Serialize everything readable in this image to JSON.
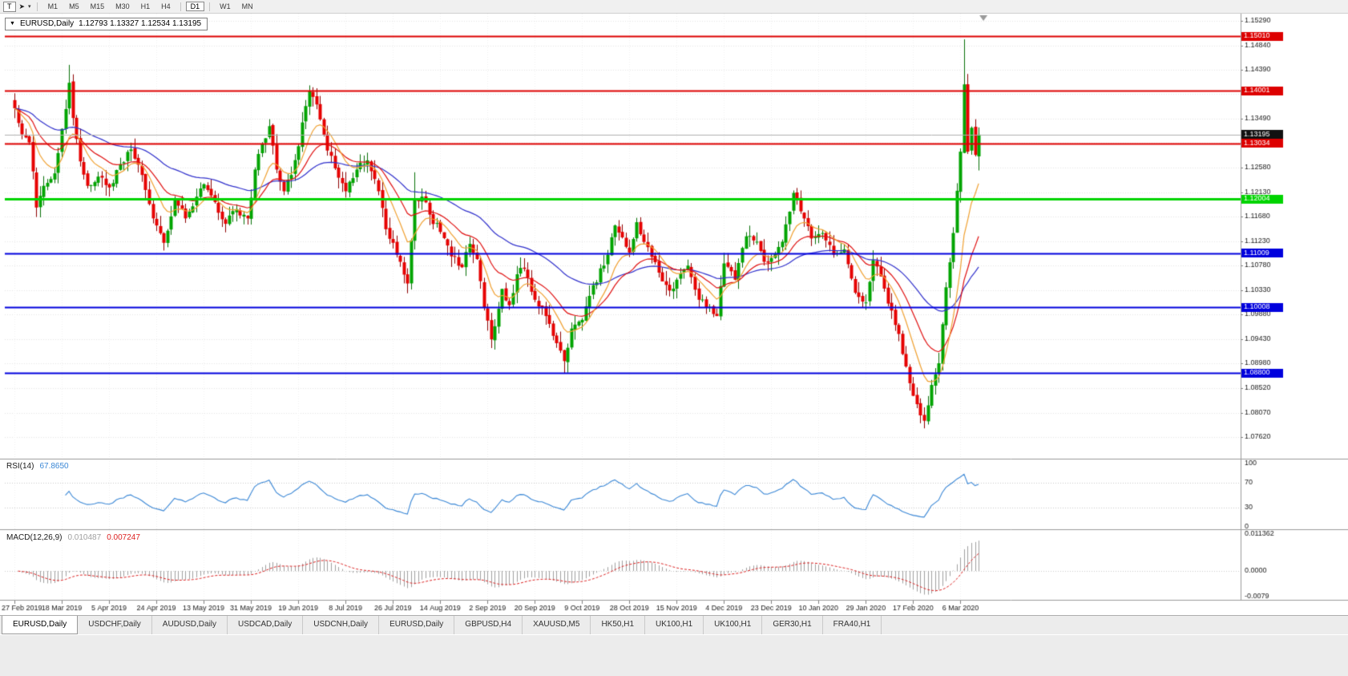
{
  "toolbar": {
    "tool_button_label": "T",
    "timeframes": [
      "M1",
      "M5",
      "M15",
      "M30",
      "H1",
      "H4",
      "D1",
      "W1",
      "MN"
    ],
    "active_timeframe": "D1"
  },
  "chart": {
    "symbol_period": "EURUSD,Daily",
    "ohlc_text": "1.12793 1.13327 1.12534 1.13195",
    "current_price": "1.13195",
    "price_axis_labels": [
      "1.15290",
      "1.14840",
      "1.14390",
      "1.13940",
      "1.13490",
      "1.13040",
      "1.12580",
      "1.12130",
      "1.11680",
      "1.11230",
      "1.10780",
      "1.10330",
      "1.09880",
      "1.09430",
      "1.08980",
      "1.08520",
      "1.08070",
      "1.07620"
    ],
    "hlines": [
      {
        "value": 1.1501,
        "label": "1.15010",
        "color": "#dd0000",
        "width": 2
      },
      {
        "value": 1.14001,
        "label": "1.14001",
        "color": "#dd0000",
        "width": 2
      },
      {
        "value": 1.13034,
        "label": "1.13034",
        "color": "#dd0000",
        "width": 2
      },
      {
        "value": 1.12004,
        "label": "1.12004",
        "color": "#00d400",
        "width": 3
      },
      {
        "value": 1.11009,
        "label": "1.11009",
        "color": "#0000dd",
        "width": 2
      },
      {
        "value": 1.10008,
        "label": "1.10008",
        "color": "#0000dd",
        "width": 2
      },
      {
        "value": 1.088,
        "label": "1.08800",
        "color": "#0000dd",
        "width": 2
      }
    ]
  },
  "rsi": {
    "name": "RSI(14)",
    "value": "67.8650",
    "period": 14,
    "line_color": "#3a87d6",
    "levels": [
      {
        "label": "100",
        "value": 100
      },
      {
        "label": "70",
        "value": 70
      },
      {
        "label": "30",
        "value": 30
      },
      {
        "label": "0",
        "value": 0
      }
    ]
  },
  "macd": {
    "name": "MACD(12,26,9)",
    "macd_value": "0.010487",
    "signal_value": "0.007247",
    "fast": 12,
    "slow": 26,
    "signal": 9,
    "histogram_color": "#a0a0a0",
    "signal_color": "#dd2222",
    "axis_labels": [
      {
        "label": "0.011362",
        "value": 0.011362
      },
      {
        "label": "0.0000",
        "value": 0.0
      },
      {
        "label": "-0.0079",
        "value": -0.0079
      }
    ]
  },
  "date_axis": [
    "27 Feb 2019",
    "18 Mar 2019",
    "5 Apr 2019",
    "24 Apr 2019",
    "13 May 2019",
    "31 May 2019",
    "19 Jun 2019",
    "8 Jul 2019",
    "26 Jul 2019",
    "14 Aug 2019",
    "2 Sep 2019",
    "20 Sep 2019",
    "9 Oct 2019",
    "28 Oct 2019",
    "15 Nov 2019",
    "4 Dec 2019",
    "23 Dec 2019",
    "10 Jan 2020",
    "29 Jan 2020",
    "17 Feb 2020",
    "6 Mar 2020"
  ],
  "tabs": {
    "active_index": 0,
    "items": [
      "EURUSD,Daily",
      "USDCHF,Daily",
      "AUDUSD,Daily",
      "USDCAD,Daily",
      "USDCNH,Daily",
      "EURUSD,Daily",
      "GBPUSD,H4",
      "XAUUSD,M5",
      "HK50,H1",
      "UK100,H1",
      "UK100,H1",
      "GER30,H1",
      "FRA40,H1"
    ]
  },
  "chart_data": {
    "type": "candlestick",
    "symbol": "EURUSD",
    "timeframe": "Daily",
    "bar_count": 266,
    "bars_per_label": 13,
    "price_range_top": 1.15424,
    "price_range_bottom": 1.07221,
    "noise": 0.0014,
    "wick": 0.002,
    "bull_color": "#00a400",
    "bull_wick": "#067006",
    "bear_color": "#e60000",
    "bear_wick": "#8e0000",
    "moving_averages": [
      {
        "period": 52,
        "color": "#3030cc"
      },
      {
        "period": 21,
        "color": "#e01010"
      },
      {
        "period": 10,
        "color": "#f0a030"
      }
    ],
    "last_bar": {
      "o": 1.12793,
      "h": 1.13327,
      "l": 1.12534,
      "c": 1.13195
    },
    "close_waypoints": [
      [
        0,
        1.1368
      ],
      [
        2,
        1.132
      ],
      [
        4,
        1.1305
      ],
      [
        6,
        1.1185
      ],
      [
        8,
        1.1225
      ],
      [
        11,
        1.1248
      ],
      [
        13,
        1.133
      ],
      [
        15,
        1.1415
      ],
      [
        16,
        1.135
      ],
      [
        18,
        1.127
      ],
      [
        20,
        1.1225
      ],
      [
        23,
        1.1242
      ],
      [
        26,
        1.1222
      ],
      [
        29,
        1.1265
      ],
      [
        32,
        1.1292
      ],
      [
        35,
        1.1245
      ],
      [
        38,
        1.1165
      ],
      [
        41,
        1.112
      ],
      [
        44,
        1.12
      ],
      [
        47,
        1.1165
      ],
      [
        50,
        1.1205
      ],
      [
        52,
        1.1228
      ],
      [
        55,
        1.1195
      ],
      [
        58,
        1.1155
      ],
      [
        61,
        1.1182
      ],
      [
        64,
        1.1165
      ],
      [
        66,
        1.1255
      ],
      [
        68,
        1.1302
      ],
      [
        70,
        1.1335
      ],
      [
        72,
        1.1255
      ],
      [
        74,
        1.1215
      ],
      [
        76,
        1.1245
      ],
      [
        78,
        1.1298
      ],
      [
        80,
        1.1372
      ],
      [
        81,
        1.14
      ],
      [
        83,
        1.1375
      ],
      [
        86,
        1.129
      ],
      [
        89,
        1.124
      ],
      [
        91,
        1.1215
      ],
      [
        94,
        1.1255
      ],
      [
        97,
        1.1272
      ],
      [
        100,
        1.1215
      ],
      [
        102,
        1.1145
      ],
      [
        104,
        1.112
      ],
      [
        106,
        1.1085
      ],
      [
        108,
        1.1045
      ],
      [
        110,
        1.1198
      ],
      [
        112,
        1.1205
      ],
      [
        114,
        1.1172
      ],
      [
        117,
        1.114
      ],
      [
        120,
        1.1095
      ],
      [
        123,
        1.1075
      ],
      [
        125,
        1.1118
      ],
      [
        127,
        1.109
      ],
      [
        129,
        1.1
      ],
      [
        131,
        1.0942
      ],
      [
        134,
        1.1035
      ],
      [
        136,
        1.1005
      ],
      [
        138,
        1.1062
      ],
      [
        140,
        1.1072
      ],
      [
        143,
        1.1015
      ],
      [
        146,
        1.0985
      ],
      [
        149,
        1.0935
      ],
      [
        151,
        1.0902
      ],
      [
        153,
        1.0962
      ],
      [
        156,
        1.0978
      ],
      [
        159,
        1.1042
      ],
      [
        162,
        1.1078
      ],
      [
        165,
        1.1152
      ],
      [
        167,
        1.113
      ],
      [
        169,
        1.1102
      ],
      [
        171,
        1.1158
      ],
      [
        174,
        1.1112
      ],
      [
        177,
        1.1065
      ],
      [
        180,
        1.1032
      ],
      [
        182,
        1.1052
      ],
      [
        185,
        1.1078
      ],
      [
        188,
        1.1015
      ],
      [
        191,
        1.1002
      ],
      [
        193,
        1.0985
      ],
      [
        195,
        1.1082
      ],
      [
        198,
        1.1052
      ],
      [
        201,
        1.1132
      ],
      [
        204,
        1.1122
      ],
      [
        206,
        1.1085
      ],
      [
        208,
        1.1092
      ],
      [
        211,
        1.1122
      ],
      [
        214,
        1.1212
      ],
      [
        216,
        1.1178
      ],
      [
        219,
        1.1128
      ],
      [
        222,
        1.1138
      ],
      [
        225,
        1.1098
      ],
      [
        228,
        1.1108
      ],
      [
        231,
        1.1028
      ],
      [
        234,
        1.101
      ],
      [
        236,
        1.1088
      ],
      [
        238,
        1.1058
      ],
      [
        240,
        1.1008
      ],
      [
        243,
        1.0952
      ],
      [
        245,
        1.0892
      ],
      [
        247,
        1.0838
      ],
      [
        249,
        1.0802
      ],
      [
        250,
        1.0792
      ],
      [
        252,
        1.0858
      ],
      [
        254,
        1.0898
      ],
      [
        256,
        1.1038
      ],
      [
        258,
        1.1138
      ],
      [
        260,
        1.1288
      ],
      [
        261,
        1.1412
      ],
      [
        262,
        1.1288
      ],
      [
        263,
        1.1332
      ],
      [
        264,
        1.1282
      ],
      [
        265,
        1.13195
      ]
    ],
    "overrides": {
      "15": {
        "h": 1.1448
      },
      "108": {
        "l": 1.1027
      },
      "110": {
        "h": 1.125
      },
      "131": {
        "l": 1.0926
      },
      "151": {
        "l": 1.0879
      },
      "250": {
        "l": 1.0778
      },
      "261": {
        "h": 1.1495
      },
      "265": {
        "o": 1.12793,
        "h": 1.13327,
        "l": 1.12534,
        "c": 1.13195
      }
    }
  }
}
